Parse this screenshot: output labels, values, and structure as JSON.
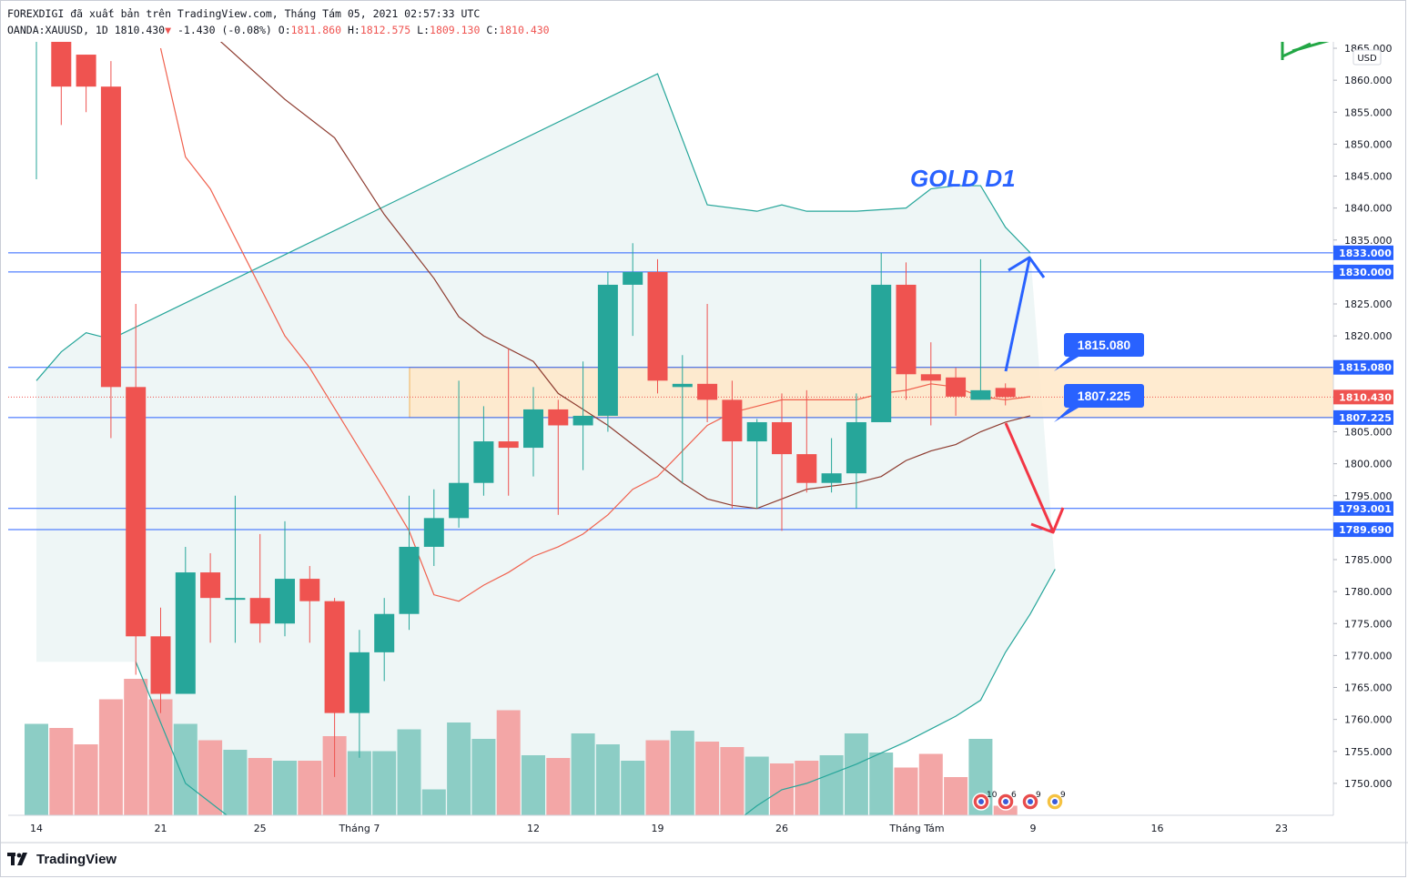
{
  "header": {
    "line1": "FOREXDIGI đã xuất bản trên TradingView.com, Tháng Tám 05, 2021 02:57:33 UTC",
    "symbol": "OANDA:XAUUSD, 1D",
    "last": "1810.430",
    "change": "-1.430 (-0.08%)",
    "o_label": "O:",
    "o": "1811.860",
    "h_label": "H:",
    "h": "1812.575",
    "l_label": "L:",
    "l": "1809.130",
    "c_label": "C:",
    "c": "1810.430"
  },
  "footer": {
    "brand": "TradingView"
  },
  "chart_data": {
    "type": "candlestick",
    "currency": "USD",
    "title": "GOLD D1",
    "y_range": [
      1745,
      1866
    ],
    "y_ticks": [
      1750,
      1755,
      1760,
      1765,
      1770,
      1775,
      1780,
      1785,
      1790,
      1795,
      1800,
      1805,
      1810,
      1815,
      1820,
      1825,
      1830,
      1835,
      1840,
      1845,
      1850,
      1855,
      1860,
      1865
    ],
    "x_labels": [
      "14",
      "21",
      "25",
      "Tháng 7",
      "12",
      "19",
      "26",
      "Tháng Tám",
      "9",
      "16",
      "23"
    ],
    "candles": [
      {
        "o": 1872.0,
        "h": 1872.0,
        "l": 1844.5,
        "c": 1872.0,
        "v": 0.67
      },
      {
        "o": 1873.0,
        "h": 1873.0,
        "l": 1853.0,
        "c": 1859.0,
        "v": 0.64
      },
      {
        "o": 1864.0,
        "h": 1864.0,
        "l": 1855.0,
        "c": 1859.0,
        "v": 0.52
      },
      {
        "o": 1859.0,
        "h": 1863.0,
        "l": 1804.0,
        "c": 1812.0,
        "v": 0.85
      },
      {
        "o": 1812.0,
        "h": 1825.0,
        "l": 1767.0,
        "c": 1773.0,
        "v": 1.0
      },
      {
        "o": 1773.0,
        "h": 1777.5,
        "l": 1761.0,
        "c": 1764.0,
        "v": 0.85
      },
      {
        "o": 1764.0,
        "h": 1787.0,
        "l": 1764.0,
        "c": 1783.0,
        "v": 0.67
      },
      {
        "o": 1783.0,
        "h": 1786.0,
        "l": 1772.0,
        "c": 1779.0,
        "v": 0.55
      },
      {
        "o": 1779.0,
        "h": 1795.0,
        "l": 1772.0,
        "c": 1779.0,
        "v": 0.48
      },
      {
        "o": 1779.0,
        "h": 1789.0,
        "l": 1772.0,
        "c": 1775.0,
        "v": 0.42
      },
      {
        "o": 1775.0,
        "h": 1791.0,
        "l": 1773.0,
        "c": 1782.0,
        "v": 0.4
      },
      {
        "o": 1782.0,
        "h": 1784.0,
        "l": 1772.0,
        "c": 1778.5,
        "v": 0.4
      },
      {
        "o": 1778.5,
        "h": 1779.0,
        "l": 1751.0,
        "c": 1761.0,
        "v": 0.58
      },
      {
        "o": 1761.0,
        "h": 1774.0,
        "l": 1754.0,
        "c": 1770.5,
        "v": 0.47
      },
      {
        "o": 1770.5,
        "h": 1779.0,
        "l": 1766.0,
        "c": 1776.5,
        "v": 0.47
      },
      {
        "o": 1776.5,
        "h": 1795.0,
        "l": 1774.0,
        "c": 1787.0,
        "v": 0.63
      },
      {
        "o": 1787.0,
        "h": 1796.0,
        "l": 1784.0,
        "c": 1791.5,
        "v": 0.19
      },
      {
        "o": 1791.5,
        "h": 1813.0,
        "l": 1790.0,
        "c": 1797.0,
        "v": 0.68
      },
      {
        "o": 1797.0,
        "h": 1809.0,
        "l": 1795.0,
        "c": 1803.5,
        "v": 0.56
      },
      {
        "o": 1803.5,
        "h": 1818.0,
        "l": 1795.0,
        "c": 1802.5,
        "v": 0.77
      },
      {
        "o": 1802.5,
        "h": 1812.0,
        "l": 1798.0,
        "c": 1808.5,
        "v": 0.44
      },
      {
        "o": 1808.5,
        "h": 1810.0,
        "l": 1792.0,
        "c": 1806.0,
        "v": 0.42
      },
      {
        "o": 1806.0,
        "h": 1816.0,
        "l": 1799.0,
        "c": 1807.5,
        "v": 0.6
      },
      {
        "o": 1807.5,
        "h": 1830.0,
        "l": 1805.0,
        "c": 1828.0,
        "v": 0.52
      },
      {
        "o": 1828.0,
        "h": 1834.5,
        "l": 1820.0,
        "c": 1830.0,
        "v": 0.4
      },
      {
        "o": 1830.0,
        "h": 1832.0,
        "l": 1811.0,
        "c": 1813.0,
        "v": 0.55
      },
      {
        "o": 1812.0,
        "h": 1817.0,
        "l": 1797.0,
        "c": 1812.5,
        "v": 0.62
      },
      {
        "o": 1812.5,
        "h": 1825.0,
        "l": 1806.5,
        "c": 1810.0,
        "v": 0.54
      },
      {
        "o": 1810.0,
        "h": 1813.0,
        "l": 1793.0,
        "c": 1803.5,
        "v": 0.5
      },
      {
        "o": 1803.5,
        "h": 1807.0,
        "l": 1793.0,
        "c": 1806.5,
        "v": 0.43
      },
      {
        "o": 1806.5,
        "h": 1811.0,
        "l": 1789.5,
        "c": 1801.5,
        "v": 0.38
      },
      {
        "o": 1801.5,
        "h": 1811.5,
        "l": 1795.5,
        "c": 1797.0,
        "v": 0.4
      },
      {
        "o": 1797.0,
        "h": 1804.0,
        "l": 1795.5,
        "c": 1798.5,
        "v": 0.44
      },
      {
        "o": 1798.5,
        "h": 1811.0,
        "l": 1793.0,
        "c": 1806.5,
        "v": 0.6
      },
      {
        "o": 1806.5,
        "h": 1833.0,
        "l": 1806.5,
        "c": 1828.0,
        "v": 0.46
      },
      {
        "o": 1828.0,
        "h": 1831.5,
        "l": 1810.0,
        "c": 1814.0,
        "v": 0.35
      },
      {
        "o": 1814.0,
        "h": 1819.0,
        "l": 1806.0,
        "c": 1813.0,
        "v": 0.45
      },
      {
        "o": 1813.5,
        "h": 1815.0,
        "l": 1807.5,
        "c": 1810.5,
        "v": 0.28
      },
      {
        "o": 1810.0,
        "h": 1832.0,
        "l": 1810.0,
        "c": 1811.5,
        "v": 0.56
      },
      {
        "o": 1811.86,
        "h": 1812.575,
        "l": 1809.13,
        "c": 1810.43,
        "v": 0.07
      }
    ],
    "bollinger_upper": [
      [
        0,
        1813
      ],
      [
        1,
        1817.5
      ],
      [
        2,
        1820.5
      ],
      [
        3,
        1819.5
      ],
      [
        25,
        1861
      ],
      [
        27,
        1840.5
      ],
      [
        29,
        1839.5
      ],
      [
        30,
        1840.5
      ],
      [
        31,
        1839.5
      ],
      [
        33,
        1839.5
      ],
      [
        35,
        1840
      ],
      [
        36,
        1843
      ],
      [
        37,
        1843.5
      ],
      [
        38,
        1843.5
      ],
      [
        39,
        1837
      ],
      [
        40,
        1833
      ]
    ],
    "bollinger_lower": [
      [
        4,
        1769
      ],
      [
        6,
        1750
      ],
      [
        10,
        1738
      ],
      [
        20,
        1730
      ],
      [
        28,
        1743.5
      ],
      [
        29,
        1746.5
      ],
      [
        30,
        1749
      ],
      [
        31,
        1750
      ],
      [
        33,
        1753
      ],
      [
        35,
        1756.5
      ],
      [
        36,
        1758.5
      ],
      [
        37,
        1760.5
      ],
      [
        38,
        1763
      ],
      [
        39,
        1770.5
      ],
      [
        40,
        1776.5
      ],
      [
        41,
        1783.5
      ]
    ],
    "bollinger_basis": [
      [
        4,
        1878
      ],
      [
        10,
        1857
      ],
      [
        12,
        1851
      ],
      [
        14,
        1839
      ],
      [
        16,
        1829
      ],
      [
        17,
        1823
      ],
      [
        18,
        1820
      ],
      [
        20,
        1816
      ],
      [
        21,
        1811
      ],
      [
        23,
        1806
      ],
      [
        26,
        1797
      ],
      [
        27,
        1794.5
      ],
      [
        28,
        1793.5
      ],
      [
        29,
        1793
      ],
      [
        30,
        1794.5
      ],
      [
        31,
        1796
      ],
      [
        33,
        1797
      ],
      [
        34,
        1798
      ],
      [
        35,
        1800.5
      ],
      [
        36,
        1802
      ],
      [
        37,
        1803
      ],
      [
        38,
        1805
      ],
      [
        39,
        1806.5
      ],
      [
        40,
        1807.5
      ]
    ],
    "sma_red": [
      [
        5,
        1865
      ],
      [
        6,
        1848
      ],
      [
        7,
        1843
      ],
      [
        10,
        1820
      ],
      [
        11,
        1815
      ],
      [
        14,
        1796
      ],
      [
        15,
        1789.5
      ],
      [
        16,
        1779.5
      ],
      [
        17,
        1778.5
      ],
      [
        18,
        1781
      ],
      [
        19,
        1783
      ],
      [
        20,
        1785.5
      ],
      [
        21,
        1787
      ],
      [
        22,
        1789
      ],
      [
        23,
        1792
      ],
      [
        24,
        1796
      ],
      [
        25,
        1798
      ],
      [
        26,
        1802
      ],
      [
        27,
        1806
      ],
      [
        28,
        1808
      ],
      [
        29,
        1809
      ],
      [
        30,
        1810
      ],
      [
        31,
        1810
      ],
      [
        32,
        1810
      ],
      [
        33,
        1810
      ],
      [
        34,
        1811
      ],
      [
        35,
        1811.5
      ],
      [
        36,
        1812.5
      ],
      [
        37,
        1812
      ],
      [
        38,
        1810.5
      ],
      [
        39,
        1810
      ],
      [
        40,
        1810.5
      ]
    ],
    "hlines": [
      1833.0,
      1830.0,
      1815.08,
      1807.225,
      1793.001,
      1789.69
    ],
    "zone": {
      "top": 1815.08,
      "bottom": 1807.225
    },
    "price_labels": [
      "1833.000",
      "1830.000",
      "1815.080",
      "1810.430",
      "1807.225",
      "1793.001",
      "1789.690"
    ],
    "callouts": [
      "1815.080",
      "1807.225"
    ],
    "badge_counts": [
      "10",
      "6",
      "9",
      "9"
    ],
    "colors": {
      "up": "#26a69a",
      "down": "#ef5350",
      "up_vol": "#8ccdc5",
      "down_vol": "#f3a6a6",
      "hline": "#2962ff",
      "zone": "#ffe8c8",
      "band": "#eef6f6",
      "callout": "#2962ff",
      "arrow_up": "#2962ff",
      "arrow_down": "#f23645"
    }
  }
}
